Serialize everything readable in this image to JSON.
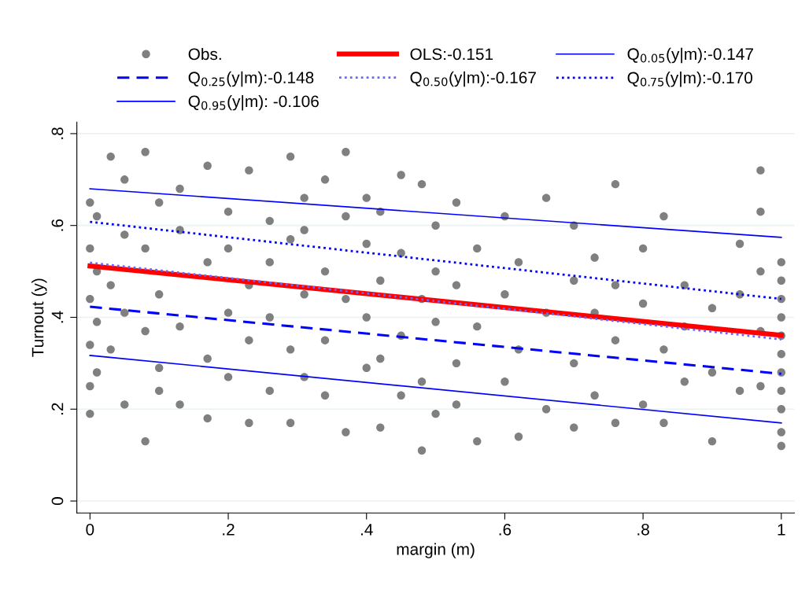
{
  "chart_data": {
    "type": "scatter",
    "xlabel": "margin (m)",
    "ylabel": "Turnout (y)",
    "xlim": [
      -0.019,
      1.019
    ],
    "ylim": [
      -0.026,
      0.825
    ],
    "xticks": [
      {
        "value": 0,
        "label": "0"
      },
      {
        "value": 0.2,
        "label": ".2"
      },
      {
        "value": 0.4,
        "label": ".4"
      },
      {
        "value": 0.6,
        "label": ".6"
      },
      {
        "value": 0.8,
        "label": ".8"
      },
      {
        "value": 1,
        "label": "1"
      }
    ],
    "yticks": [
      {
        "value": 0,
        "label": "0"
      },
      {
        "value": 0.2,
        "label": ".2"
      },
      {
        "value": 0.4,
        "label": ".4"
      },
      {
        "value": 0.6,
        "label": ".6"
      },
      {
        "value": 0.8,
        "label": ".8"
      }
    ],
    "grid": "y",
    "legend": "top",
    "marker": "circle",
    "series": [
      {
        "name": "Obs.",
        "color": "#808080",
        "x": [
          0,
          0,
          0,
          0,
          0,
          0,
          0.01,
          0.01,
          0.01,
          0.01,
          0.03,
          0.03,
          0.03,
          0.05,
          0.05,
          0.05,
          0.05,
          0.08,
          0.08,
          0.08,
          0.08,
          0.1,
          0.1,
          0.1,
          0.1,
          0.13,
          0.13,
          0.13,
          0.13,
          0.17,
          0.17,
          0.17,
          0.17,
          0.2,
          0.2,
          0.2,
          0.2,
          0.23,
          0.23,
          0.23,
          0.23,
          0.26,
          0.26,
          0.26,
          0.26,
          0.29,
          0.29,
          0.29,
          0.29,
          0.31,
          0.31,
          0.31,
          0.31,
          0.34,
          0.34,
          0.34,
          0.34,
          0.37,
          0.37,
          0.37,
          0.37,
          0.4,
          0.4,
          0.4,
          0.4,
          0.42,
          0.42,
          0.42,
          0.42,
          0.45,
          0.45,
          0.45,
          0.45,
          0.48,
          0.48,
          0.48,
          0.48,
          0.5,
          0.5,
          0.5,
          0.5,
          0.53,
          0.53,
          0.53,
          0.53,
          0.56,
          0.56,
          0.56,
          0.6,
          0.6,
          0.6,
          0.62,
          0.62,
          0.62,
          0.66,
          0.66,
          0.66,
          0.7,
          0.7,
          0.7,
          0.7,
          0.73,
          0.73,
          0.73,
          0.76,
          0.76,
          0.76,
          0.76,
          0.8,
          0.8,
          0.8,
          0.83,
          0.83,
          0.83,
          0.86,
          0.86,
          0.86,
          0.9,
          0.9,
          0.9,
          0.94,
          0.94,
          0.94,
          0.97,
          0.97,
          0.97,
          0.97,
          0.97,
          1,
          1,
          1,
          1,
          1,
          1,
          1,
          1,
          1,
          1,
          1
        ],
        "values": [
          0.19,
          0.25,
          0.34,
          0.44,
          0.55,
          0.65,
          0.28,
          0.39,
          0.5,
          0.62,
          0.75,
          0.47,
          0.33,
          0.7,
          0.21,
          0.41,
          0.58,
          0.76,
          0.13,
          0.37,
          0.55,
          0.65,
          0.24,
          0.45,
          0.29,
          0.59,
          0.21,
          0.38,
          0.68,
          0.73,
          0.18,
          0.52,
          0.31,
          0.63,
          0.41,
          0.27,
          0.55,
          0.72,
          0.17,
          0.47,
          0.35,
          0.61,
          0.24,
          0.52,
          0.4,
          0.75,
          0.17,
          0.57,
          0.33,
          0.66,
          0.27,
          0.45,
          0.59,
          0.7,
          0.35,
          0.5,
          0.23,
          0.76,
          0.15,
          0.62,
          0.44,
          0.56,
          0.29,
          0.4,
          0.66,
          0.16,
          0.48,
          0.63,
          0.31,
          0.71,
          0.36,
          0.54,
          0.23,
          0.69,
          0.11,
          0.44,
          0.26,
          0.6,
          0.39,
          0.5,
          0.19,
          0.65,
          0.3,
          0.47,
          0.21,
          0.55,
          0.13,
          0.38,
          0.62,
          0.26,
          0.45,
          0.52,
          0.14,
          0.33,
          0.66,
          0.2,
          0.41,
          0.6,
          0.16,
          0.48,
          0.3,
          0.53,
          0.23,
          0.41,
          0.69,
          0.17,
          0.35,
          0.47,
          0.55,
          0.21,
          0.43,
          0.62,
          0.33,
          0.17,
          0.47,
          0.26,
          0.38,
          0.13,
          0.42,
          0.28,
          0.56,
          0.24,
          0.45,
          0.72,
          0.63,
          0.5,
          0.37,
          0.25,
          0.12,
          0.15,
          0.2,
          0.24,
          0.28,
          0.32,
          0.36,
          0.4,
          0.44,
          0.48,
          0.52
        ]
      },
      {
        "name": "OLS:-0.151",
        "type": "line",
        "color": "#ff0000",
        "line_style": "solid",
        "marker": "none",
        "x": [
          0,
          1
        ],
        "values": [
          0.512,
          0.361
        ]
      },
      {
        "name": "Q$_{0.05}$(y|m):-0.147",
        "type": "line",
        "color": "#0000ff",
        "line_style": "solid",
        "marker": "none",
        "x": [
          0,
          1
        ],
        "values": [
          0.317,
          0.17
        ]
      },
      {
        "name": "Q$_{0.25}$(y|m):-0.148",
        "type": "line",
        "color": "#0000ff",
        "line_style": "dashed",
        "marker": "none",
        "x": [
          0,
          1
        ],
        "values": [
          0.423,
          0.277
        ]
      },
      {
        "name": "Q$_{0.50}$(y|m):-0.167",
        "type": "line",
        "color": "#6666ff",
        "line_style": "dotted",
        "marker": "none",
        "x": [
          0,
          1
        ],
        "values": [
          0.519,
          0.352
        ]
      },
      {
        "name": "Q$_{0.75}$(y|m):-0.170",
        "type": "line",
        "color": "#0000ff",
        "line_style": "dotted",
        "marker": "none",
        "x": [
          0,
          1
        ],
        "values": [
          0.608,
          0.44
        ]
      },
      {
        "name": "Q$_{0.95}$(y|m): -0.106",
        "type": "line",
        "color": "#0000ff",
        "line_style": "solid",
        "marker": "none",
        "x": [
          0,
          1
        ],
        "values": [
          0.68,
          0.574
        ]
      }
    ]
  }
}
